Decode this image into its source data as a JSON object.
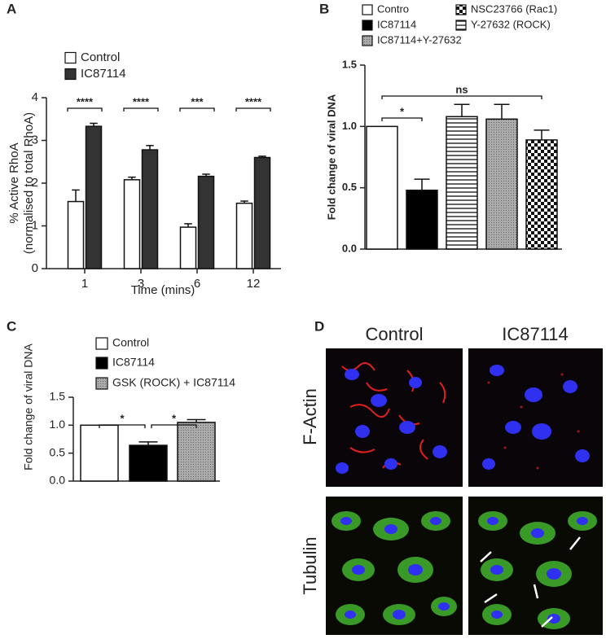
{
  "chart_data": [
    {
      "type": "bar",
      "panel": "A",
      "ylabel": [
        "% Active RhoA",
        "(normalised to total RhoA)"
      ],
      "xlabel": "Time (mins)",
      "categories": [
        "1",
        "3",
        "6",
        "12"
      ],
      "series": [
        {
          "name": "Control",
          "color": "#ffffff",
          "values": [
            1.57,
            2.08,
            0.97,
            1.53
          ],
          "errors": [
            0.27,
            0.06,
            0.08,
            0.05
          ]
        },
        {
          "name": "IC87114",
          "color": "#333333",
          "values": [
            3.33,
            2.78,
            2.16,
            2.6
          ],
          "errors": [
            0.07,
            0.1,
            0.05,
            0.03
          ]
        }
      ],
      "ylim": [
        0,
        4
      ],
      "yticks": [
        0,
        1,
        2,
        3,
        4
      ],
      "annotations": [
        "****",
        "****",
        "***",
        "****"
      ],
      "legend": "top-left"
    },
    {
      "type": "bar",
      "panel": "B",
      "ylabel": "Fold change of viral DNA",
      "series": [
        {
          "name": "Contro",
          "color": "#ffffff",
          "fill": "solid",
          "values": [
            1.0
          ],
          "errors": [
            null
          ]
        },
        {
          "name": "IC87114",
          "color": "#000000",
          "fill": "solid",
          "values": [
            0.48
          ],
          "errors": [
            0.09
          ]
        },
        {
          "name": "Y-27632  (ROCK)",
          "color": "#222222",
          "fill": "hstripes",
          "values": [
            1.08
          ],
          "errors": [
            0.1
          ]
        },
        {
          "name": "IC87114+Y-27632",
          "color": "#999999",
          "fill": "dots",
          "values": [
            1.06
          ],
          "errors": [
            0.12
          ]
        },
        {
          "name": "NSC23766 (Rac1)",
          "color": "#222222",
          "fill": "checker",
          "values": [
            0.89
          ],
          "errors": [
            0.08
          ]
        }
      ],
      "ylim": [
        0,
        1.5
      ],
      "yticks": [
        {
          "value": 0,
          "label": "0.0"
        },
        0.5,
        {
          "value": 1,
          "label": "1.0"
        },
        1.5
      ],
      "annotations": [
        "*",
        "ns"
      ],
      "legend": "top"
    },
    {
      "type": "bar",
      "panel": "C",
      "ylabel": "Fold change of viral DNA",
      "series": [
        {
          "name": "Control",
          "color": "#ffffff",
          "fill": "solid",
          "values": [
            1.0
          ],
          "errors": [
            null
          ]
        },
        {
          "name": "IC87114",
          "color": "#000000",
          "fill": "solid",
          "values": [
            0.64
          ],
          "errors": [
            0.06
          ]
        },
        {
          "name": "GSK (ROCK) + IC87114",
          "color": "#999999",
          "fill": "dots",
          "values": [
            1.05
          ],
          "errors": [
            0.05
          ]
        }
      ],
      "ylim": [
        0,
        1.5
      ],
      "yticks": [
        {
          "value": 0,
          "label": "0.0"
        },
        0.5,
        {
          "value": 1,
          "label": "1.0"
        },
        1.5
      ],
      "annotations": [
        "*",
        "*"
      ],
      "legend": "top"
    }
  ],
  "image_panel": {
    "panel": "D",
    "columns": [
      "Control",
      "IC87114"
    ],
    "rows": [
      "F-Actin",
      "Tubulin"
    ]
  }
}
